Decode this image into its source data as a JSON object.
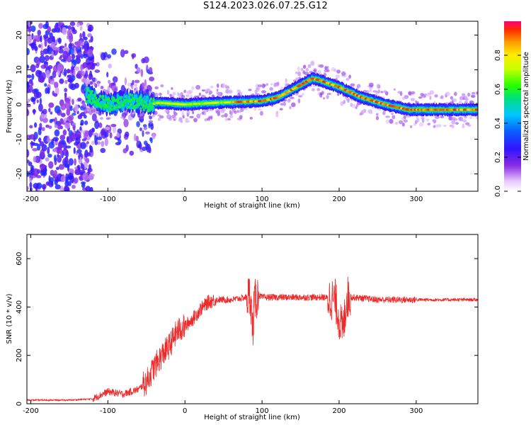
{
  "title": "S124.2023.026.07.25.G12",
  "colors": {
    "snr_line": "#ee2a2a",
    "frame": "#000000"
  },
  "chart_data": [
    {
      "type": "heatmap",
      "xlabel": "Height of straight line (km)",
      "ylabel": "Frequency (Hz)",
      "xlim": [
        -205,
        380
      ],
      "ylim": [
        -25,
        24
      ],
      "xticks": [
        -200,
        -100,
        0,
        100,
        200,
        300
      ],
      "yticks": [
        -20,
        -10,
        0,
        10,
        20
      ],
      "colorbar": {
        "label": "Normalized spectral amplitude",
        "range": [
          0,
          1
        ],
        "ticks": [
          "0.0",
          "0.2",
          "0.4",
          "0.6",
          "0.8"
        ],
        "tick_values": [
          0.0,
          0.2,
          0.4,
          0.6,
          0.8
        ]
      },
      "ridge_frequency": {
        "x": [
          -130,
          -100,
          -75,
          -55,
          -45,
          -35,
          0,
          40,
          100,
          120,
          145,
          165,
          175,
          200,
          230,
          260,
          290,
          320,
          350,
          380
        ],
        "y": [
          3,
          0,
          1,
          0.5,
          0,
          0.5,
          0,
          0.5,
          1,
          2,
          5,
          7.5,
          7,
          5,
          2,
          0,
          -1.5,
          -1.5,
          -1.5,
          -1.5
        ]
      }
    },
    {
      "type": "line",
      "xlabel": "Height of straight line (km)",
      "ylabel": "SNR (10 * v/v)",
      "xlim": [
        -205,
        380
      ],
      "ylim": [
        0,
        700
      ],
      "xticks": [
        -200,
        -100,
        0,
        100,
        200,
        300
      ],
      "yticks": [
        0,
        200,
        400,
        600
      ],
      "series": [
        {
          "x": [
            -205,
            -150,
            -120,
            -100,
            -80,
            -60,
            -50,
            -40,
            -30,
            -20,
            -10,
            0,
            10,
            20,
            30,
            40,
            60,
            80,
            85,
            88,
            90,
            95,
            100,
            120,
            150,
            180,
            195,
            200,
            205,
            210,
            220,
            250,
            300,
            350,
            380
          ],
          "y": [
            15,
            15,
            20,
            50,
            40,
            60,
            90,
            150,
            200,
            240,
            300,
            320,
            350,
            390,
            420,
            430,
            430,
            440,
            450,
            300,
            420,
            450,
            440,
            440,
            440,
            440,
            430,
            350,
            300,
            440,
            440,
            430,
            430,
            430,
            430
          ]
        }
      ]
    }
  ]
}
